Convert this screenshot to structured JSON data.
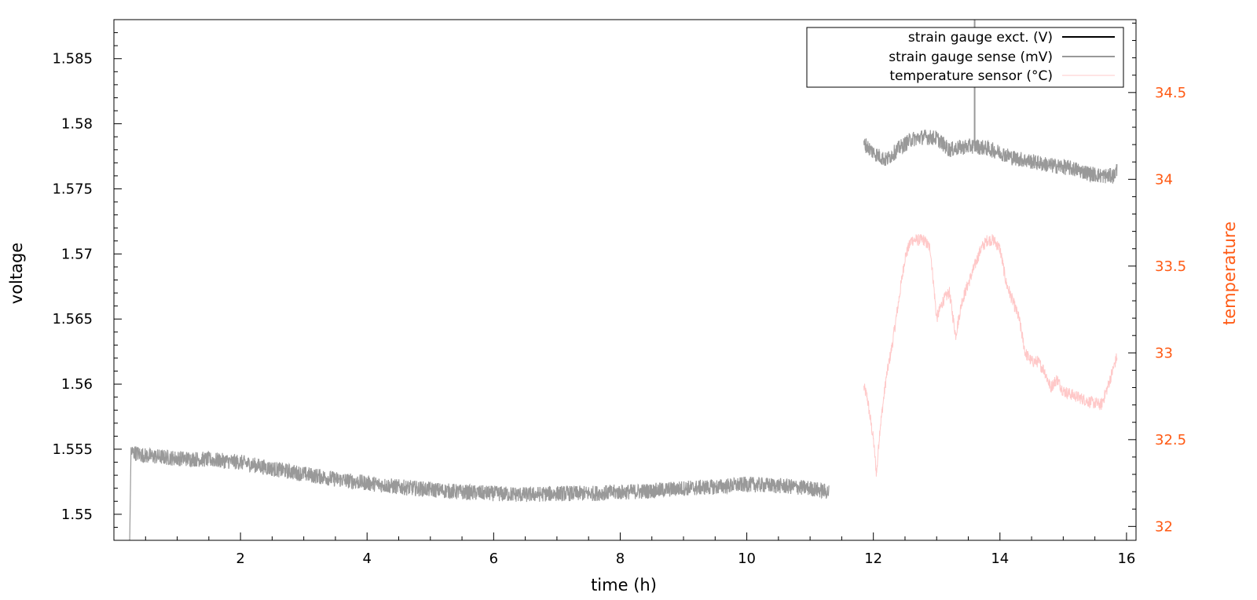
{
  "chart_data": {
    "type": "line",
    "xlabel": "time (h)",
    "ylabel": "voltage",
    "y2label": "temperature",
    "xlim": [
      0,
      16.15
    ],
    "ylim": [
      1.548,
      1.588
    ],
    "y2lim": [
      31.92,
      34.92
    ],
    "xticks": [
      2,
      4,
      6,
      8,
      10,
      12,
      14,
      16
    ],
    "yticks": [
      1.55,
      1.555,
      1.56,
      1.565,
      1.57,
      1.575,
      1.58,
      1.585
    ],
    "y2ticks": [
      32,
      32.5,
      33,
      33.5,
      34,
      34.5
    ],
    "grid": false,
    "legend_position": "top-right",
    "colors": {
      "axis": "#000000",
      "sense": "#999999",
      "excitation": "#000000",
      "temperature": "#ffc8c8",
      "y2axis": "#ff5a14"
    },
    "series": [
      {
        "name": "strain gauge exct. (V)",
        "axis": "left",
        "color": "#000000",
        "x": [],
        "y": []
      },
      {
        "name": "strain gauge sense (mV)",
        "axis": "left",
        "color": "#999999",
        "noise_band": 0.0012,
        "segments": [
          {
            "x": [
              0.25,
              0.27,
              0.5,
              1.0,
              1.5,
              2.0,
              2.5,
              3.0,
              3.5,
              4.0,
              4.5,
              5.0,
              5.5,
              6.0,
              6.5,
              7.0,
              7.5,
              8.0,
              8.5,
              9.0,
              9.5,
              10.0,
              10.5,
              11.0,
              11.3
            ],
            "y": [
              1.548,
              1.5548,
              1.5545,
              1.5543,
              1.5542,
              1.554,
              1.5535,
              1.5531,
              1.5527,
              1.5524,
              1.5521,
              1.5519,
              1.5517,
              1.5516,
              1.5515,
              1.5516,
              1.5516,
              1.5517,
              1.5518,
              1.552,
              1.5521,
              1.5523,
              1.5522,
              1.552,
              1.5517
            ]
          },
          {
            "x": [
              11.85,
              12.0,
              12.2,
              12.4,
              12.6,
              12.8,
              13.0,
              13.2,
              13.4,
              13.6,
              13.8,
              14.0,
              14.2,
              14.4,
              14.6,
              14.8,
              15.0,
              15.2,
              15.4,
              15.6,
              15.8,
              15.85
            ],
            "y": [
              1.5785,
              1.5778,
              1.5772,
              1.5781,
              1.5788,
              1.579,
              1.5789,
              1.578,
              1.5782,
              1.5783,
              1.5781,
              1.5778,
              1.5774,
              1.5772,
              1.577,
              1.5768,
              1.5767,
              1.5765,
              1.5762,
              1.576,
              1.576,
              1.5765
            ]
          }
        ],
        "spike": {
          "x": 13.6,
          "y": 1.588
        }
      },
      {
        "name": "temperature sensor (°C)",
        "axis": "right",
        "color": "#ffc8c8",
        "noise_band": 0.07,
        "x": [
          11.85,
          11.9,
          12.0,
          12.05,
          12.1,
          12.2,
          12.3,
          12.4,
          12.5,
          12.6,
          12.7,
          12.8,
          12.9,
          13.0,
          13.1,
          13.2,
          13.3,
          13.4,
          13.5,
          13.6,
          13.7,
          13.8,
          13.9,
          14.0,
          14.1,
          14.2,
          14.3,
          14.4,
          14.5,
          14.6,
          14.7,
          14.8,
          14.9,
          15.0,
          15.2,
          15.4,
          15.6,
          15.7,
          15.85
        ],
        "y": [
          32.8,
          32.75,
          32.5,
          32.3,
          32.55,
          32.85,
          33.05,
          33.3,
          33.55,
          33.65,
          33.65,
          33.65,
          33.6,
          33.2,
          33.3,
          33.35,
          33.1,
          33.3,
          33.4,
          33.5,
          33.6,
          33.65,
          33.65,
          33.6,
          33.4,
          33.3,
          33.2,
          33.0,
          32.95,
          32.95,
          32.9,
          32.8,
          32.85,
          32.78,
          32.75,
          32.72,
          32.7,
          32.8,
          32.98
        ]
      }
    ]
  }
}
